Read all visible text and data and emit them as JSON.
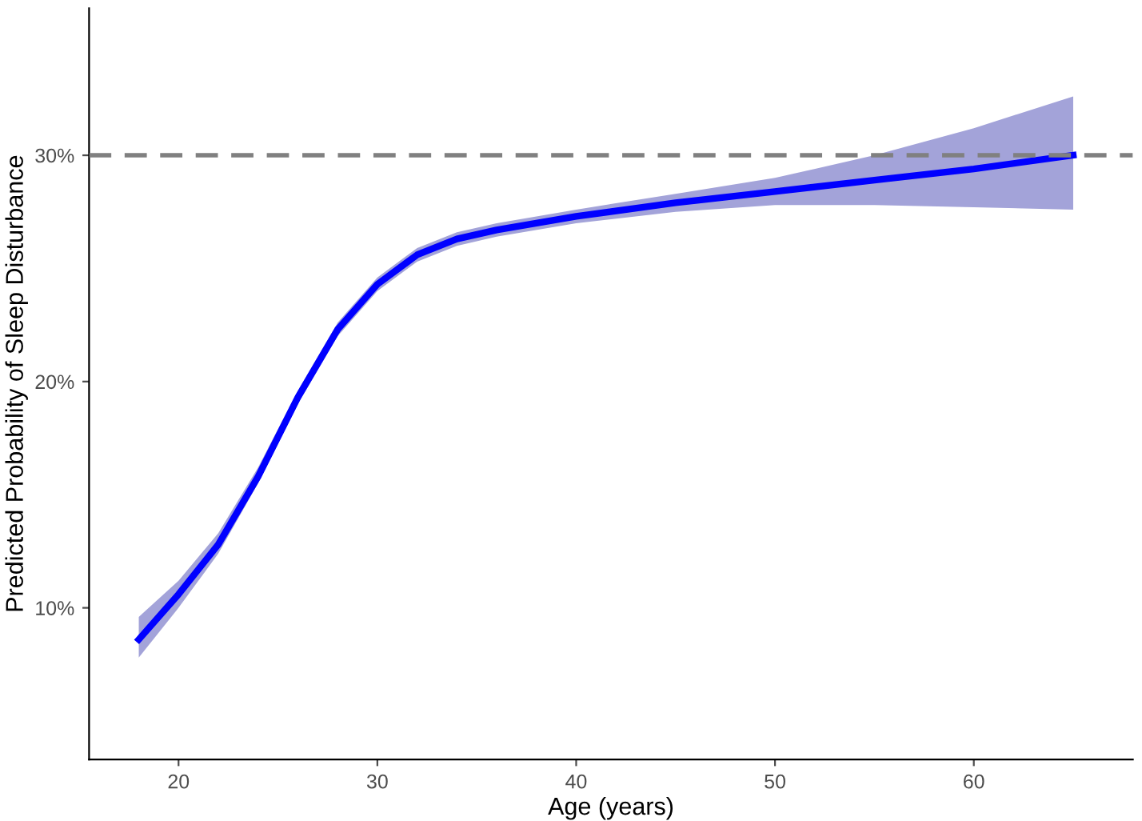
{
  "chart_data": {
    "type": "line",
    "xlabel": "Age (years)",
    "ylabel": "Predicted Probability of Sleep Disturbance",
    "xlim": [
      15.5,
      68
    ],
    "xticks": [
      20,
      30,
      40,
      50,
      60
    ],
    "ylim": [
      3.3,
      36.5
    ],
    "yticks": [
      {
        "value": 10,
        "label": "10%"
      },
      {
        "value": 20,
        "label": "20%"
      },
      {
        "value": 30,
        "label": "30%"
      }
    ],
    "grid": false,
    "legend": false,
    "marker": "none",
    "line_style": "solid",
    "series": [
      {
        "color": "#0000ff",
        "x": [
          18,
          20,
          22,
          24,
          26,
          28,
          30,
          32,
          34,
          36,
          40,
          45,
          50,
          55,
          60,
          65
        ],
        "values": [
          8.6,
          10.6,
          12.8,
          15.8,
          19.3,
          22.3,
          24.3,
          25.6,
          26.3,
          26.7,
          27.3,
          27.9,
          28.4,
          28.9,
          29.4,
          30.0
        ],
        "lower": [
          7.8,
          10.0,
          12.4,
          15.5,
          19.0,
          22.0,
          24.0,
          25.3,
          26.0,
          26.4,
          27.0,
          27.5,
          27.8,
          27.8,
          27.7,
          27.6
        ],
        "upper": [
          9.6,
          11.2,
          13.3,
          16.2,
          19.6,
          22.6,
          24.6,
          25.9,
          26.6,
          27.0,
          27.6,
          28.3,
          29.0,
          30.0,
          31.2,
          32.6
        ]
      }
    ],
    "ref_lines": [
      {
        "axis": "y",
        "value": 30,
        "label": null,
        "color": "#808080",
        "line_style": "dashed"
      }
    ]
  }
}
